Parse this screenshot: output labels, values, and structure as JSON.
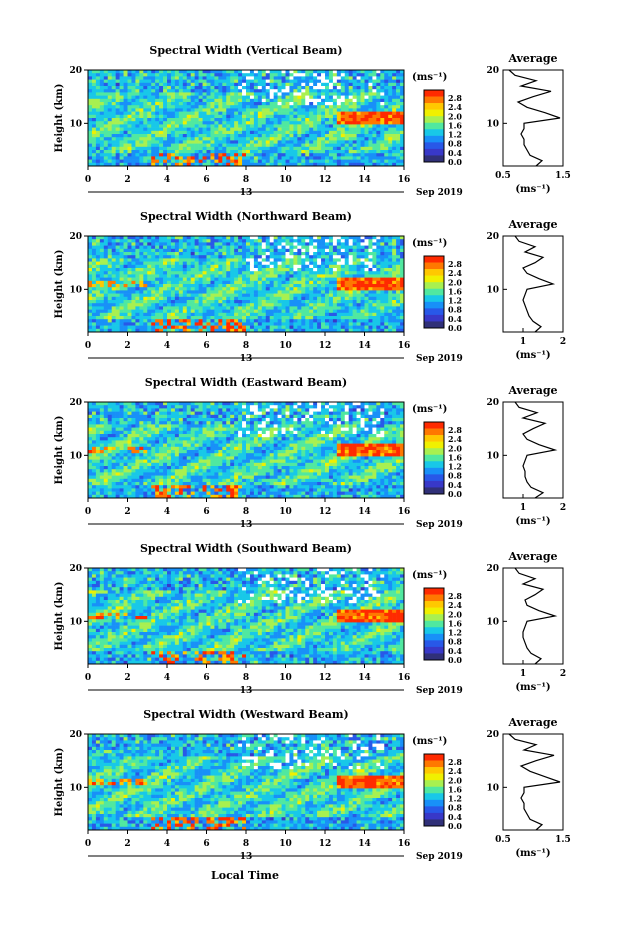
{
  "figure": {
    "bottom_xlabel": "Local Time",
    "date_label": "Sep 2019",
    "day_label": "13"
  },
  "colorbar": {
    "unit": "(ms⁻¹)",
    "ticks": [
      "2.8",
      "2.4",
      "2.0",
      "1.6",
      "1.2",
      "0.8",
      "0.4",
      "0.0"
    ],
    "colors": [
      "#ff2a00",
      "#ff7800",
      "#ffc800",
      "#f0f000",
      "#a8f050",
      "#50e8a0",
      "#18c8e8",
      "#1890f8",
      "#2858e8",
      "#3838c8",
      "#303078"
    ]
  },
  "chart_data": [
    {
      "type": "heatmap",
      "title": "Spectral Width (Vertical Beam)",
      "ylabel": "Height (km)",
      "xlim": [
        0,
        16
      ],
      "ylim": [
        2,
        20
      ],
      "x_ticks": [
        "0",
        "2",
        "4",
        "6",
        "8",
        "10",
        "12",
        "14",
        "16"
      ],
      "y_ticks": [
        "20",
        "10"
      ],
      "avg": {
        "title": "Average",
        "xlabel": "(ms⁻¹)",
        "x_ticks": [
          "0.5",
          "1.5"
        ],
        "xlim": [
          0.5,
          1.5
        ],
        "heights": [
          2,
          3,
          4,
          5,
          6,
          7,
          8,
          9,
          10,
          11,
          12,
          13,
          14,
          15,
          16,
          17,
          18,
          19,
          20
        ],
        "values": [
          1.05,
          1.15,
          0.95,
          0.9,
          0.85,
          0.85,
          0.8,
          0.85,
          0.85,
          1.45,
          1.2,
          0.9,
          0.75,
          1.0,
          1.3,
          0.8,
          1.05,
          0.7,
          0.6
        ]
      }
    },
    {
      "type": "heatmap",
      "title": "Spectral Width (Northward Beam)",
      "ylabel": "Height (km)",
      "xlim": [
        0,
        16
      ],
      "ylim": [
        2,
        20
      ],
      "x_ticks": [
        "0",
        "2",
        "4",
        "6",
        "8",
        "10",
        "12",
        "14",
        "16"
      ],
      "y_ticks": [
        "20",
        "10"
      ],
      "avg": {
        "title": "Average",
        "xlabel": "(ms⁻¹)",
        "x_ticks": [
          "1",
          "2"
        ],
        "xlim": [
          0.5,
          2.0
        ],
        "heights": [
          2,
          3,
          4,
          5,
          6,
          7,
          8,
          9,
          10,
          11,
          12,
          13,
          14,
          15,
          16,
          17,
          18,
          19,
          20
        ],
        "values": [
          1.3,
          1.45,
          1.25,
          1.15,
          1.1,
          1.05,
          1.0,
          1.05,
          1.1,
          1.75,
          1.4,
          1.1,
          1.0,
          1.3,
          1.5,
          1.05,
          1.3,
          0.9,
          0.8
        ]
      }
    },
    {
      "type": "heatmap",
      "title": "Spectral Width (Eastward Beam)",
      "ylabel": "Height (km)",
      "xlim": [
        0,
        16
      ],
      "ylim": [
        2,
        20
      ],
      "x_ticks": [
        "0",
        "2",
        "4",
        "6",
        "8",
        "10",
        "12",
        "14",
        "16"
      ],
      "y_ticks": [
        "20",
        "10"
      ],
      "avg": {
        "title": "Average",
        "xlabel": "(ms⁻¹)",
        "x_ticks": [
          "1",
          "2"
        ],
        "xlim": [
          0.5,
          2.0
        ],
        "heights": [
          2,
          3,
          4,
          5,
          6,
          7,
          8,
          9,
          10,
          11,
          12,
          13,
          14,
          15,
          16,
          17,
          18,
          19,
          20
        ],
        "values": [
          1.3,
          1.5,
          1.2,
          1.1,
          1.05,
          1.05,
          1.0,
          1.05,
          1.1,
          1.8,
          1.4,
          1.1,
          1.0,
          1.25,
          1.55,
          1.0,
          1.35,
          0.9,
          0.8
        ]
      }
    },
    {
      "type": "heatmap",
      "title": "Spectral Width (Southward Beam)",
      "ylabel": "Height (km)",
      "xlim": [
        0,
        16
      ],
      "ylim": [
        2,
        20
      ],
      "x_ticks": [
        "0",
        "2",
        "4",
        "6",
        "8",
        "10",
        "12",
        "14",
        "16"
      ],
      "y_ticks": [
        "20",
        "10"
      ],
      "avg": {
        "title": "Average",
        "xlabel": "(ms⁻¹)",
        "x_ticks": [
          "1",
          "2"
        ],
        "xlim": [
          0.5,
          2.0
        ],
        "heights": [
          2,
          3,
          4,
          5,
          6,
          7,
          8,
          9,
          10,
          11,
          12,
          13,
          14,
          15,
          16,
          17,
          18,
          19,
          20
        ],
        "values": [
          1.3,
          1.45,
          1.2,
          1.1,
          1.05,
          1.0,
          1.0,
          1.05,
          1.1,
          1.8,
          1.4,
          1.1,
          1.05,
          1.3,
          1.5,
          1.0,
          1.3,
          0.9,
          0.8
        ]
      }
    },
    {
      "type": "heatmap",
      "title": "Spectral Width (Westward Beam)",
      "ylabel": "Height (km)",
      "xlim": [
        0,
        16
      ],
      "ylim": [
        2,
        20
      ],
      "x_ticks": [
        "0",
        "2",
        "4",
        "6",
        "8",
        "10",
        "12",
        "14",
        "16"
      ],
      "y_ticks": [
        "20",
        "10"
      ],
      "avg": {
        "title": "Average",
        "xlabel": "(ms⁻¹)",
        "x_ticks": [
          "0.5",
          "1.5"
        ],
        "xlim": [
          0.5,
          1.5
        ],
        "heights": [
          2,
          3,
          4,
          5,
          6,
          7,
          8,
          9,
          10,
          11,
          12,
          13,
          14,
          15,
          16,
          17,
          18,
          19,
          20
        ],
        "values": [
          1.05,
          1.15,
          0.95,
          0.9,
          0.85,
          0.85,
          0.8,
          0.85,
          0.85,
          1.45,
          1.2,
          0.95,
          0.8,
          1.05,
          1.35,
          0.85,
          1.05,
          0.7,
          0.6
        ]
      }
    }
  ]
}
